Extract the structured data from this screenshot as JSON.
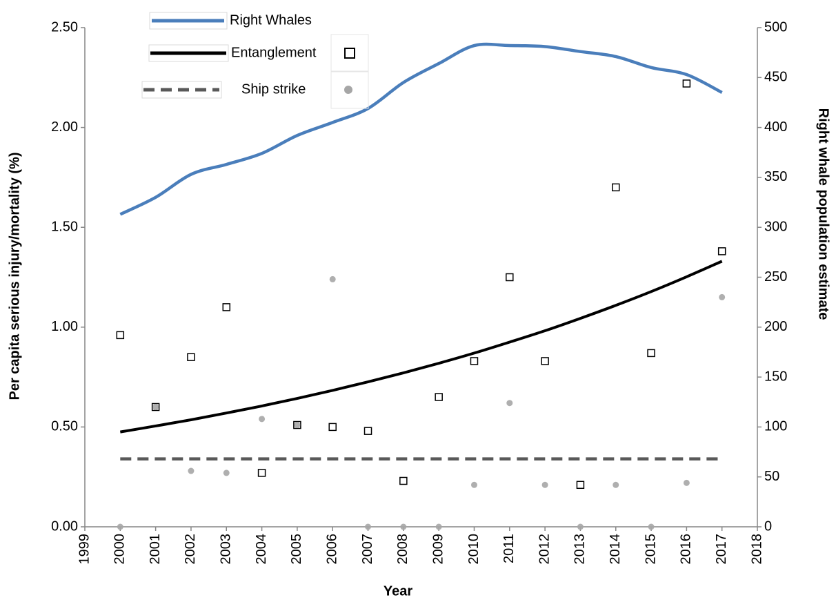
{
  "chart_data": {
    "type": "line",
    "x_label": "Year",
    "y_label": "Per capita serious injury/mortality (%)",
    "y2_label": "Right whale population estimate",
    "x": [
      2000,
      2001,
      2002,
      2003,
      2004,
      2005,
      2006,
      2007,
      2008,
      2009,
      2010,
      2011,
      2012,
      2013,
      2014,
      2015,
      2016,
      2017
    ],
    "xlim": [
      1999,
      2018
    ],
    "xticks": [
      1999,
      2000,
      2001,
      2002,
      2003,
      2004,
      2005,
      2006,
      2007,
      2008,
      2009,
      2010,
      2011,
      2012,
      2013,
      2014,
      2015,
      2016,
      2017,
      2018
    ],
    "ylim": [
      0,
      2.5
    ],
    "yticks": [
      {
        "value": 0,
        "label": "0.00"
      },
      {
        "value": 0.5,
        "label": "0.50"
      },
      {
        "value": 1,
        "label": "1.00"
      },
      {
        "value": 1.5,
        "label": "1.50"
      },
      {
        "value": 2,
        "label": "2.00"
      },
      {
        "value": 2.5,
        "label": "2.50"
      }
    ],
    "y2lim": [
      0,
      500
    ],
    "y2ticks": [
      0,
      50,
      100,
      150,
      200,
      250,
      300,
      350,
      400,
      450,
      500
    ],
    "grid": false,
    "series": [
      {
        "name": "Right Whales",
        "color": "#4a7ebb",
        "axis": "y2",
        "mark": "line",
        "values": [
          313,
          330,
          353,
          363,
          374,
          392,
          405,
          419,
          445,
          464,
          482,
          482,
          481,
          476,
          471,
          460,
          453,
          435
        ]
      },
      {
        "name": "Entanglement",
        "color": "#000000",
        "mark": "square",
        "values": [
          0.96,
          0.6,
          0.85,
          1.1,
          0.27,
          0.51,
          0.5,
          0.48,
          0.23,
          0.65,
          0.83,
          1.25,
          0.83,
          0.21,
          1.7,
          0.87,
          2.22,
          1.38
        ],
        "trend": [
          0.475,
          0.505,
          0.536,
          0.57,
          0.605,
          0.643,
          0.683,
          0.726,
          0.771,
          0.819,
          0.87,
          0.925,
          0.982,
          1.044,
          1.109,
          1.178,
          1.252,
          1.33
        ]
      },
      {
        "name": "Ship strike",
        "color": "#a6a6a6",
        "trend_color": "#595959",
        "mark": "circle",
        "values": [
          0,
          0.6,
          0.28,
          0.27,
          0.54,
          0.51,
          1.24,
          0,
          0,
          0,
          0.21,
          0.62,
          0.21,
          0,
          0.21,
          0,
          0.22,
          1.15
        ],
        "trend": [
          0.34,
          0.34,
          0.34,
          0.34,
          0.34,
          0.34,
          0.34,
          0.34,
          0.34,
          0.34,
          0.34,
          0.34,
          0.34,
          0.34,
          0.34,
          0.34,
          0.34,
          0.34
        ]
      }
    ]
  }
}
